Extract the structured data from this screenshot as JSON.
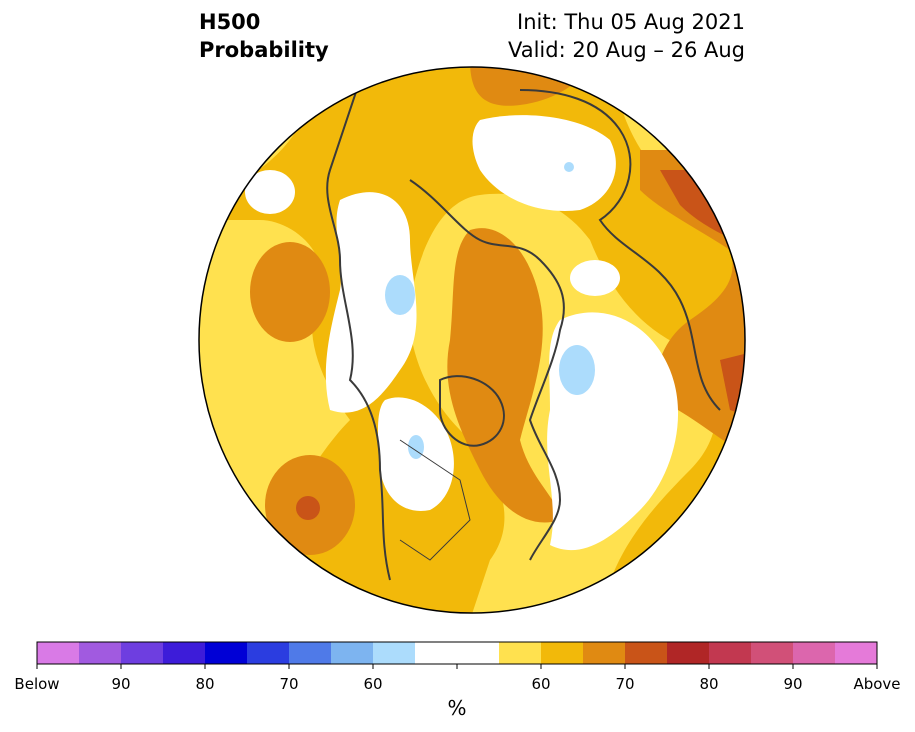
{
  "title": {
    "left_line1": "H500",
    "left_line2": "Probability",
    "right_line1": "Init: Thu 05 Aug 2021",
    "right_line2": "Valid: 20 Aug – 26 Aug"
  },
  "colorbar": {
    "unit": "%",
    "bins": [
      {
        "color": "#d97ae6"
      },
      {
        "color": "#a15ae0"
      },
      {
        "color": "#6e3ee0"
      },
      {
        "color": "#3d1cd9"
      },
      {
        "color": "#0000d6"
      },
      {
        "color": "#2b3de0"
      },
      {
        "color": "#4f7ae8"
      },
      {
        "color": "#7db4f0"
      },
      {
        "color": "#acdcfc"
      },
      {
        "color": "#ffffff"
      },
      {
        "color": "#ffffff"
      },
      {
        "color": "#ffe14f"
      },
      {
        "color": "#f2b90a"
      },
      {
        "color": "#e08a12"
      },
      {
        "color": "#c95418"
      },
      {
        "color": "#b02626"
      },
      {
        "color": "#c23850"
      },
      {
        "color": "#d15078"
      },
      {
        "color": "#dc66ad"
      },
      {
        "color": "#e57ad9"
      }
    ],
    "labels": [
      {
        "text": "Below",
        "edge": 0
      },
      {
        "text": "90",
        "edge": 2
      },
      {
        "text": "80",
        "edge": 4
      },
      {
        "text": "70",
        "edge": 6
      },
      {
        "text": "60",
        "edge": 8
      },
      {
        "text": "60",
        "edge": 12
      },
      {
        "text": "70",
        "edge": 14
      },
      {
        "text": "80",
        "edge": 16
      },
      {
        "text": "90",
        "edge": 18
      },
      {
        "text": "Above",
        "edge": 20
      }
    ]
  },
  "map": {
    "projection": "north-polar-stereographic",
    "colors": {
      "p55": "#ffe14f",
      "p60": "#f2b90a",
      "p65": "#e08a12",
      "p70": "#c95418",
      "below55": "#acdcfc",
      "neutral": "#ffffff",
      "coast": "#3a3a3a"
    }
  }
}
